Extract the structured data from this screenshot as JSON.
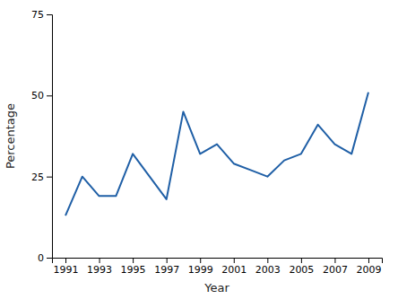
{
  "chart_data": {
    "type": "line",
    "x": [
      1991,
      1992,
      1993,
      1994,
      1995,
      1996,
      1997,
      1998,
      1999,
      2000,
      2001,
      2002,
      2003,
      2004,
      2005,
      2006,
      2007,
      2008,
      2009
    ],
    "values": [
      13,
      25,
      19,
      19,
      32,
      25,
      18,
      45,
      32,
      35,
      29,
      27,
      25,
      30,
      32,
      41,
      35,
      32,
      51
    ],
    "color": "#1f5fa6",
    "xlabel": "Year",
    "ylabel": "Percentage",
    "xlim": [
      1990.2,
      2009.8
    ],
    "xticks": [
      1991,
      1993,
      1995,
      1997,
      1999,
      2001,
      2003,
      2005,
      2007,
      2009
    ],
    "ylim": [
      0,
      75
    ],
    "yticks": [
      0,
      25,
      50,
      75
    ],
    "grid": false
  }
}
